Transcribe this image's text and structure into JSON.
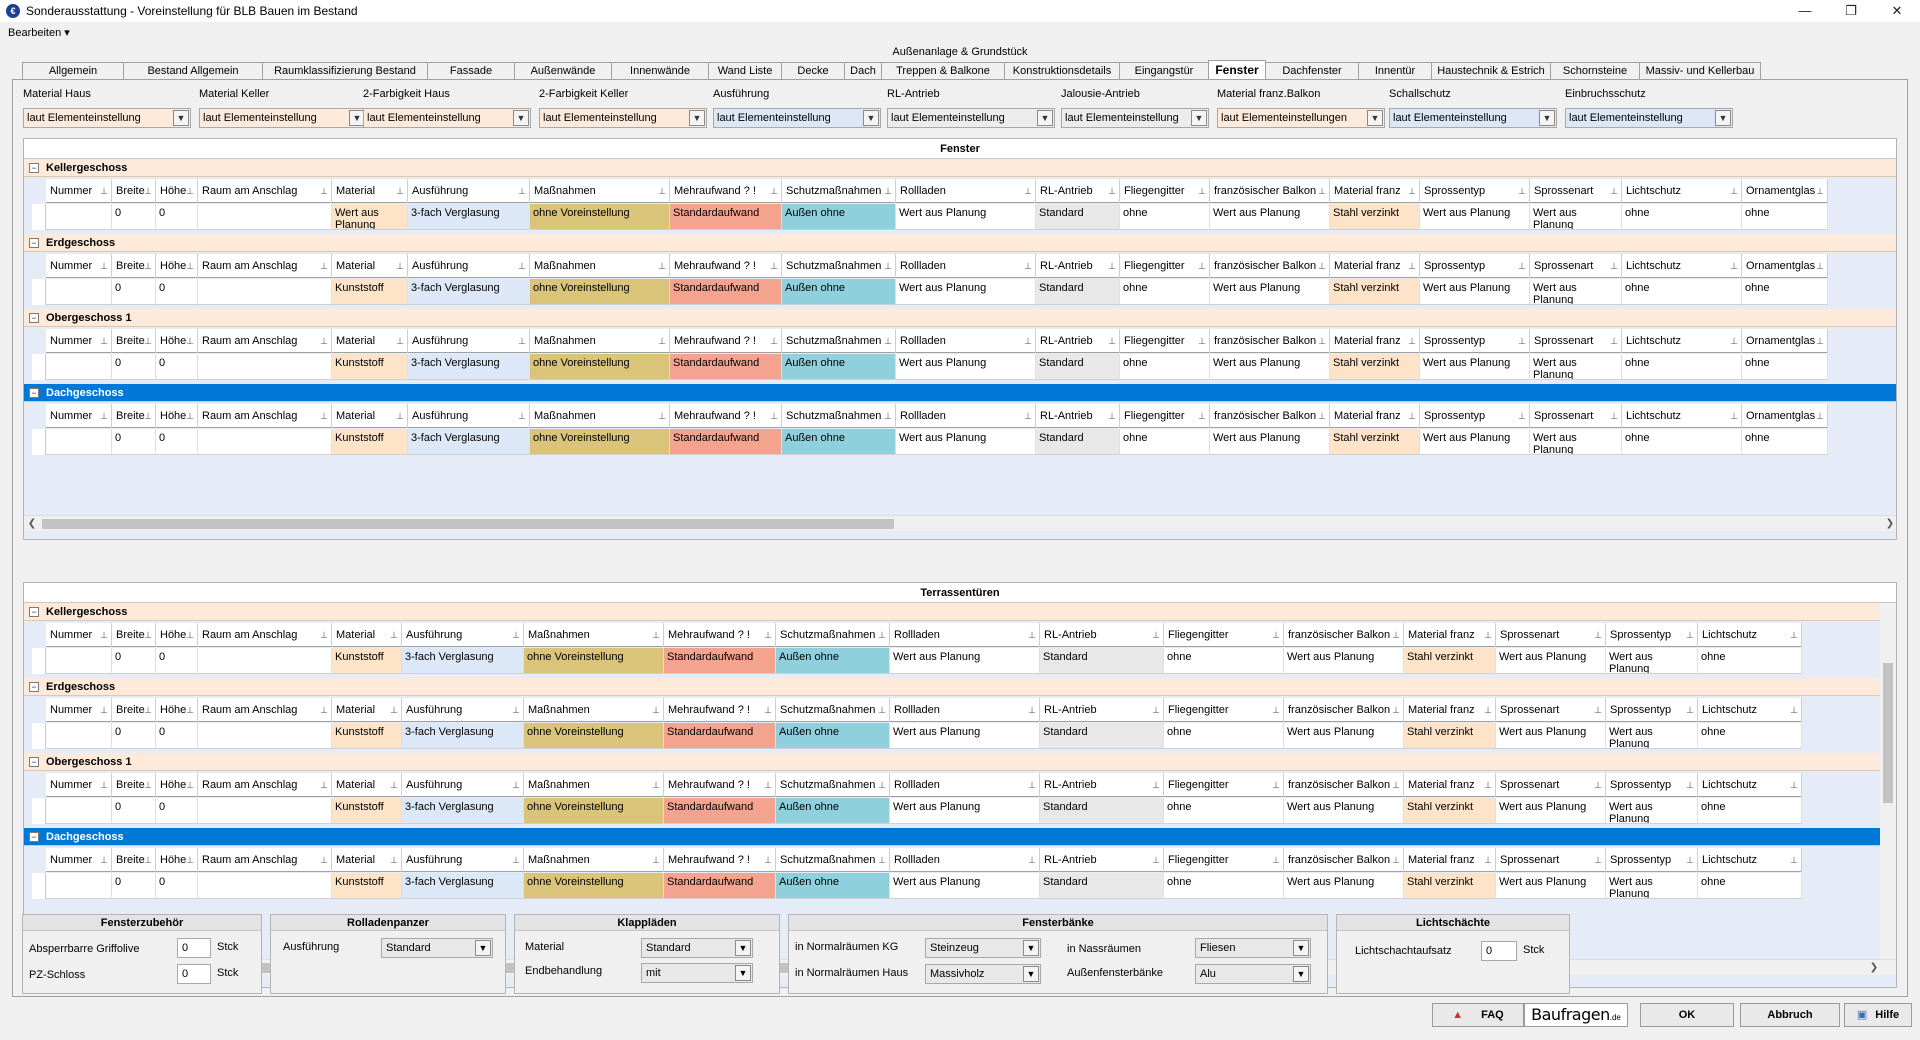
{
  "window": {
    "title": "Sonderausstattung - Voreinstellung für BLB Bauen im Bestand"
  },
  "menu": {
    "edit": "Bearbeiten ▾"
  },
  "tabgroup_title": "Außenanlage & Grundstück",
  "tabs": [
    "Allgemein",
    "Bestand Allgemein",
    "Raumklassifizierung Bestand",
    "Fassade",
    "Außenwände",
    "Innenwände",
    "Wand Liste",
    "Decke",
    "Dach",
    "Treppen & Balkone",
    "Konstruktionsdetails",
    "Eingangstür",
    "Fenster",
    "Dachfenster",
    "Innentür",
    "Haustechnik & Estrich",
    "Schornsteine",
    "Massiv- und Kellerbau"
  ],
  "active_tab": "Fenster",
  "filters": [
    {
      "label": "Material Haus",
      "value": "laut Elementeinstellung",
      "bg": "#fdeada"
    },
    {
      "label": "Material Keller",
      "value": "laut Elementeinstellung",
      "bg": "#fdeada"
    },
    {
      "label": "2-Farbigkeit Haus",
      "value": "laut Elementeinstellung",
      "bg": "#fdeada"
    },
    {
      "label": "2-Farbigkeit Keller",
      "value": "laut Elementeinstellung",
      "bg": "#fdeada"
    },
    {
      "label": "Ausführung",
      "value": "laut Elementeinstellung",
      "bg": "#dce6f5"
    },
    {
      "label": "RL-Antrieb",
      "value": "laut Elementeinstellung",
      "bg": "#ececec"
    },
    {
      "label": "Jalousie-Antrieb",
      "value": "laut Elementeinstellung",
      "bg": "#ececec"
    },
    {
      "label": "Material franz.Balkon",
      "value": "laut Elementeinstellungen",
      "bg": "#fdeada"
    },
    {
      "label": "Schallschutz",
      "value": "laut Elementeinstellung",
      "bg": "#dce6f5"
    },
    {
      "label": "Einbruchsschutz",
      "value": "laut Elementeinstellung",
      "bg": "#dce6f5"
    }
  ],
  "fenster": {
    "title": "Fenster",
    "headers": [
      "Nummer",
      "Breite",
      "Höhe",
      "Raum am Anschlag",
      "Material",
      "Ausführung",
      "Maßnahmen",
      "Mehraufwand ? !",
      "Schutzmaßnahmen",
      "Rollladen",
      "RL-Antrieb",
      "Fliegengitter",
      "französischer Balkon",
      "Material franz",
      "Sprossentyp",
      "Sprossenart",
      "Lichtschutz",
      "Ornamentglas"
    ],
    "groups": [
      {
        "name": "Kellergeschoss",
        "row": [
          "",
          "0",
          "0",
          "",
          "Wert aus Planung",
          "3-fach Verglasung",
          "ohne Voreinstellung",
          "Standardaufwand",
          "Außen ohne",
          "Wert aus Planung",
          "Standard",
          "ohne",
          "Wert aus Planung",
          "Stahl verzinkt",
          "Wert aus Planung",
          "Wert aus Planung",
          "ohne",
          "ohne"
        ]
      },
      {
        "name": "Erdgeschoss",
        "row": [
          "",
          "0",
          "0",
          "",
          "Kunststoff",
          "3-fach Verglasung",
          "ohne Voreinstellung",
          "Standardaufwand",
          "Außen ohne",
          "Wert aus Planung",
          "Standard",
          "ohne",
          "Wert aus Planung",
          "Stahl verzinkt",
          "Wert aus Planung",
          "Wert aus Planung",
          "ohne",
          "ohne"
        ]
      },
      {
        "name": "Obergeschoss 1",
        "row": [
          "",
          "0",
          "0",
          "",
          "Kunststoff",
          "3-fach Verglasung",
          "ohne Voreinstellung",
          "Standardaufwand",
          "Außen ohne",
          "Wert aus Planung",
          "Standard",
          "ohne",
          "Wert aus Planung",
          "Stahl verzinkt",
          "Wert aus Planung",
          "Wert aus Planung",
          "ohne",
          "ohne"
        ]
      },
      {
        "name": "Dachgeschoss",
        "row": [
          "",
          "0",
          "0",
          "",
          "Kunststoff",
          "3-fach Verglasung",
          "ohne Voreinstellung",
          "Standardaufwand",
          "Außen ohne",
          "Wert aus Planung",
          "Standard",
          "ohne",
          "Wert aus Planung",
          "Stahl verzinkt",
          "Wert aus Planung",
          "Wert aus Planung",
          "ohne",
          "ohne"
        ]
      }
    ]
  },
  "terrasse": {
    "title": "Terrassentüren",
    "headers": [
      "Nummer",
      "Breite",
      "Höhe",
      "Raum am Anschlag",
      "Material",
      "Ausführung",
      "Maßnahmen",
      "Mehraufwand ? !",
      "Schutzmaßnahmen",
      "Rollladen",
      "RL-Antrieb",
      "Fliegengitter",
      "französischer Balkon",
      "Material franz",
      "Sprossenart",
      "Sprossentyp",
      "Lichtschutz"
    ],
    "groups": [
      {
        "name": "Kellergeschoss",
        "row": [
          "",
          "0",
          "0",
          "",
          "Kunststoff",
          "3-fach Verglasung",
          "ohne Voreinstellung",
          "Standardaufwand",
          "Außen ohne",
          "Wert aus Planung",
          "Standard",
          "ohne",
          "Wert aus Planung",
          "Stahl verzinkt",
          "Wert aus Planung",
          "Wert aus Planung",
          "ohne"
        ]
      },
      {
        "name": "Erdgeschoss",
        "row": [
          "",
          "0",
          "0",
          "",
          "Kunststoff",
          "3-fach Verglasung",
          "ohne Voreinstellung",
          "Standardaufwand",
          "Außen ohne",
          "Wert aus Planung",
          "Standard",
          "ohne",
          "Wert aus Planung",
          "Stahl verzinkt",
          "Wert aus Planung",
          "Wert aus Planung",
          "ohne"
        ]
      },
      {
        "name": "Obergeschoss 1",
        "row": [
          "",
          "0",
          "0",
          "",
          "Kunststoff",
          "3-fach Verglasung",
          "ohne Voreinstellung",
          "Standardaufwand",
          "Außen ohne",
          "Wert aus Planung",
          "Standard",
          "ohne",
          "Wert aus Planung",
          "Stahl verzinkt",
          "Wert aus Planung",
          "Wert aus Planung",
          "ohne"
        ]
      },
      {
        "name": "Dachgeschoss",
        "row": [
          "",
          "0",
          "0",
          "",
          "Kunststoff",
          "3-fach Verglasung",
          "ohne Voreinstellung",
          "Standardaufwand",
          "Außen ohne",
          "Wert aus Planung",
          "Standard",
          "ohne",
          "Wert aus Planung",
          "Stahl verzinkt",
          "Wert aus Planung",
          "Wert aus Planung",
          "ohne"
        ]
      }
    ]
  },
  "colors": {
    "material": "#fde3c8",
    "ausfuehrung": "#dce8f7",
    "massnahmen": "#d9c47a",
    "mehraufwand": "#f4a48e",
    "schutz": "#8fd0dc",
    "rlantrieb": "#e8e8e8",
    "materialfranz": "#fde3c8",
    "selected": "#0078d7"
  },
  "fensterzubehoer": {
    "title": "Fensterzubehör",
    "label1": "Absperrbarre Griffolive",
    "value1": "0",
    "unit1": "Stck",
    "label2": "PZ-Schloss",
    "value2": "0",
    "unit2": "Stck"
  },
  "rolladen": {
    "title": "Rolladenpanzer",
    "label": "Ausführung",
    "value": "Standard"
  },
  "klapplaeden": {
    "title": "Klappläden",
    "label1": "Material",
    "value1": "Standard",
    "label2": "Endbehandlung",
    "value2": "mit"
  },
  "fensterbaenke": {
    "title": "Fensterbänke",
    "label1": "in Normalräumen KG",
    "value1": "Steinzeug",
    "label2": "in Normalräumen Haus",
    "value2": "Massivholz",
    "label3": "in Nassräumen",
    "value3": "Fliesen",
    "label4": "Außenfensterbänke",
    "value4": "Alu"
  },
  "lichtschaechte": {
    "title": "Lichtschächte",
    "label": "Lichtschachtaufsatz",
    "value": "0",
    "unit": "Stck"
  },
  "footer": {
    "faq": "FAQ",
    "logo": "Baufragen",
    "logo_suffix": ".de",
    "ok": "OK",
    "abbruch": "Abbruch",
    "hilfe": "Hilfe"
  }
}
